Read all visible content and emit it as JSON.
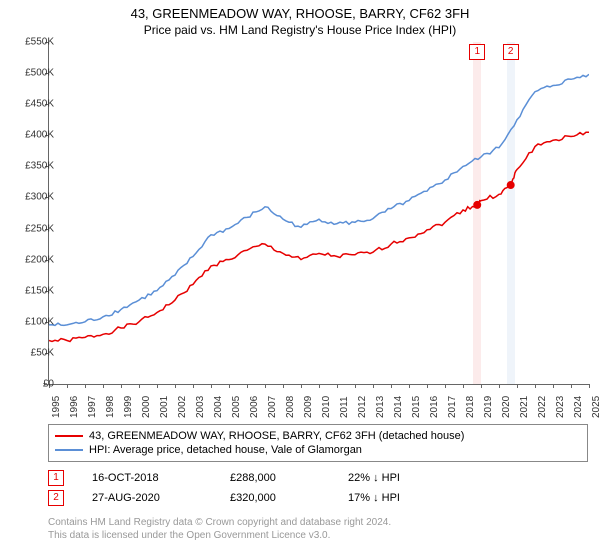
{
  "title": "43, GREENMEADOW WAY, RHOOSE, BARRY, CF62 3FH",
  "subtitle": "Price paid vs. HM Land Registry's House Price Index (HPI)",
  "chart": {
    "type": "line",
    "background_color": "#ffffff",
    "axis_color": "#666666",
    "text_color": "#333333",
    "font_size_axis": 10,
    "ylim": [
      0,
      550000
    ],
    "ytick_step": 50000,
    "ytick_labels": [
      "£0",
      "£50K",
      "£100K",
      "£150K",
      "£200K",
      "£250K",
      "£300K",
      "£350K",
      "£400K",
      "£450K",
      "£500K",
      "£550K"
    ],
    "xlim": [
      1995,
      2025
    ],
    "xticks": [
      1995,
      1996,
      1997,
      1998,
      1999,
      2000,
      2001,
      2002,
      2003,
      2004,
      2005,
      2006,
      2007,
      2008,
      2009,
      2010,
      2011,
      2012,
      2013,
      2014,
      2015,
      2016,
      2017,
      2018,
      2019,
      2020,
      2021,
      2022,
      2023,
      2024,
      2025
    ],
    "series": [
      {
        "name": "43, GREENMEADOW WAY, RHOOSE, BARRY, CF62 3FH (detached house)",
        "color": "#e60000",
        "line_width": 1.5,
        "data": [
          [
            1995,
            70000
          ],
          [
            1996,
            70000
          ],
          [
            1997,
            75000
          ],
          [
            1998,
            80000
          ],
          [
            1999,
            90000
          ],
          [
            2000,
            100000
          ],
          [
            2001,
            115000
          ],
          [
            2002,
            135000
          ],
          [
            2003,
            160000
          ],
          [
            2004,
            190000
          ],
          [
            2005,
            200000
          ],
          [
            2006,
            215000
          ],
          [
            2007,
            225000
          ],
          [
            2008,
            210000
          ],
          [
            2009,
            200000
          ],
          [
            2010,
            210000
          ],
          [
            2011,
            205000
          ],
          [
            2012,
            208000
          ],
          [
            2013,
            212000
          ],
          [
            2014,
            225000
          ],
          [
            2015,
            235000
          ],
          [
            2016,
            248000
          ],
          [
            2017,
            260000
          ],
          [
            2018,
            280000
          ],
          [
            2018.79,
            288000
          ],
          [
            2019,
            295000
          ],
          [
            2020,
            305000
          ],
          [
            2020.65,
            320000
          ],
          [
            2021,
            345000
          ],
          [
            2022,
            382000
          ],
          [
            2023,
            392000
          ],
          [
            2024,
            398000
          ],
          [
            2025,
            405000
          ]
        ]
      },
      {
        "name": "HPI: Average price, detached house, Vale of Glamorgan",
        "color": "#5b8fd6",
        "line_width": 1.5,
        "data": [
          [
            1995,
            95000
          ],
          [
            1996,
            95000
          ],
          [
            1997,
            100000
          ],
          [
            1998,
            108000
          ],
          [
            1999,
            120000
          ],
          [
            2000,
            135000
          ],
          [
            2001,
            150000
          ],
          [
            2002,
            175000
          ],
          [
            2003,
            205000
          ],
          [
            2004,
            240000
          ],
          [
            2005,
            250000
          ],
          [
            2006,
            268000
          ],
          [
            2007,
            285000
          ],
          [
            2008,
            265000
          ],
          [
            2009,
            252000
          ],
          [
            2010,
            265000
          ],
          [
            2011,
            258000
          ],
          [
            2012,
            260000
          ],
          [
            2013,
            266000
          ],
          [
            2014,
            282000
          ],
          [
            2015,
            295000
          ],
          [
            2016,
            310000
          ],
          [
            2017,
            328000
          ],
          [
            2018,
            350000
          ],
          [
            2019,
            365000
          ],
          [
            2020,
            380000
          ],
          [
            2021,
            425000
          ],
          [
            2022,
            470000
          ],
          [
            2023,
            480000
          ],
          [
            2024,
            490000
          ],
          [
            2025,
            498000
          ]
        ]
      }
    ],
    "markers": [
      {
        "label": "1",
        "x": 2018.79,
        "y": 288000,
        "color": "#e60000",
        "band_color": "#f5b8b8"
      },
      {
        "label": "2",
        "x": 2020.65,
        "y": 320000,
        "color": "#e60000",
        "band_color": "#c7d6ee"
      }
    ]
  },
  "legend": {
    "border_color": "#888888",
    "items": [
      {
        "color": "#e60000",
        "label": "43, GREENMEADOW WAY, RHOOSE, BARRY, CF62 3FH (detached house)"
      },
      {
        "color": "#5b8fd6",
        "label": "HPI: Average price, detached house, Vale of Glamorgan"
      }
    ]
  },
  "sales": [
    {
      "n": "1",
      "date": "16-OCT-2018",
      "price": "£288,000",
      "diff": "22% ↓ HPI",
      "color": "#e60000"
    },
    {
      "n": "2",
      "date": "27-AUG-2020",
      "price": "£320,000",
      "diff": "17% ↓ HPI",
      "color": "#e60000"
    }
  ],
  "footer": {
    "line1": "Contains HM Land Registry data © Crown copyright and database right 2024.",
    "line2": "This data is licensed under the Open Government Licence v3.0."
  }
}
